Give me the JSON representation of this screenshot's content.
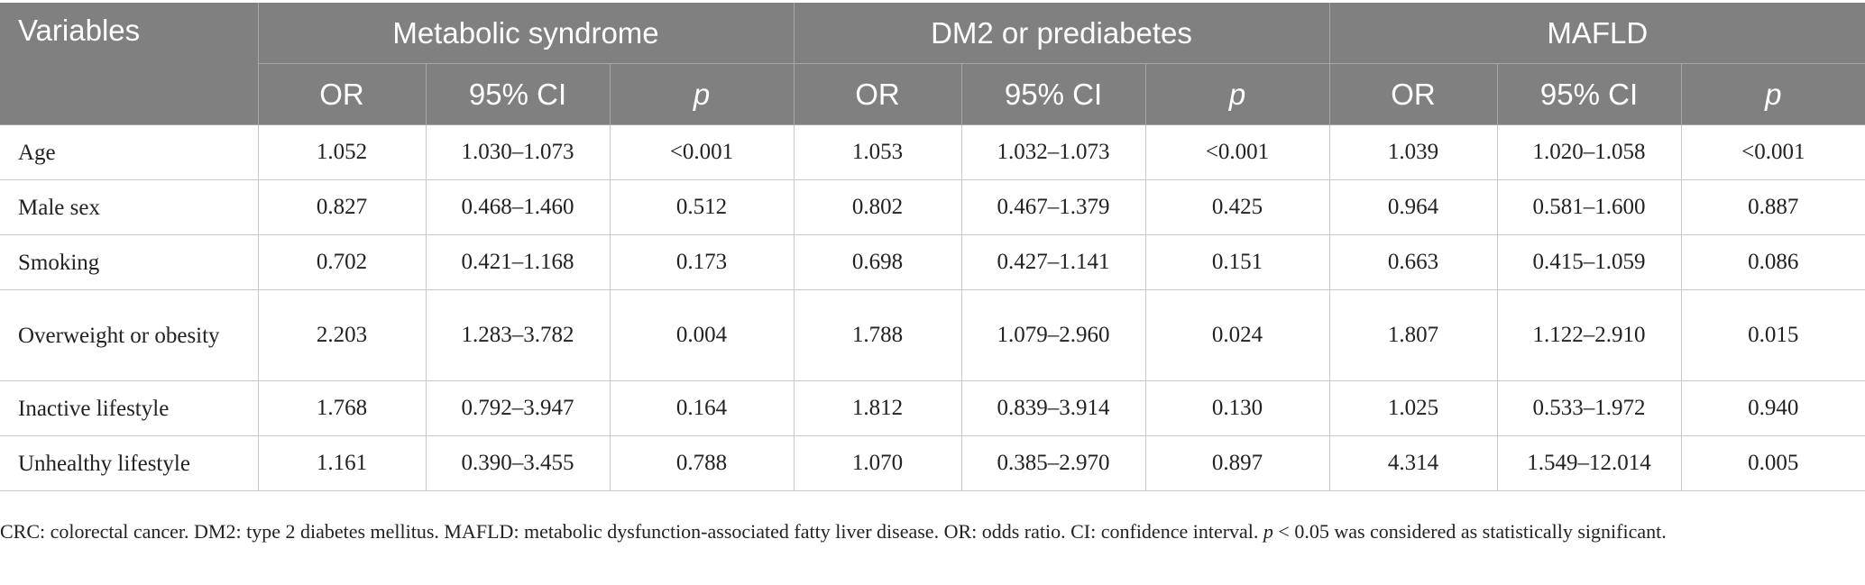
{
  "header": {
    "variables_label": "Variables",
    "groups": [
      "Metabolic syndrome",
      "DM2 or prediabetes",
      "MAFLD"
    ],
    "subcolumns": [
      "OR",
      "95% CI",
      "p"
    ]
  },
  "rows": [
    {
      "variable": "Age",
      "values": [
        "1.052",
        "1.030–1.073",
        "<0.001",
        "1.053",
        "1.032–1.073",
        "<0.001",
        "1.039",
        "1.020–1.058",
        "<0.001"
      ]
    },
    {
      "variable": "Male sex",
      "values": [
        "0.827",
        "0.468–1.460",
        "0.512",
        "0.802",
        "0.467–1.379",
        "0.425",
        "0.964",
        "0.581–1.600",
        "0.887"
      ]
    },
    {
      "variable": "Smoking",
      "values": [
        "0.702",
        "0.421–1.168",
        "0.173",
        "0.698",
        "0.427–1.141",
        "0.151",
        "0.663",
        "0.415–1.059",
        "0.086"
      ]
    },
    {
      "variable": "Overweight or obesity",
      "values": [
        "2.203",
        "1.283–3.782",
        "0.004",
        "1.788",
        "1.079–2.960",
        "0.024",
        "1.807",
        "1.122–2.910",
        "0.015"
      ]
    },
    {
      "variable": "Inactive lifestyle",
      "values": [
        "1.768",
        "0.792–3.947",
        "0.164",
        "1.812",
        "0.839–3.914",
        "0.130",
        "1.025",
        "0.533–1.972",
        "0.940"
      ]
    },
    {
      "variable": "Unhealthy lifestyle",
      "values": [
        "1.161",
        "0.390–3.455",
        "0.788",
        "1.070",
        "0.385–2.970",
        "0.897",
        "4.314",
        "1.549–12.014",
        "0.005"
      ]
    }
  ],
  "footnote": {
    "text_before_p": "CRC: colorectal cancer. DM2: type 2 diabetes mellitus. MAFLD: metabolic dysfunction-associated fatty liver disease. OR: odds ratio. CI: confidence interval. ",
    "p_symbol": "p",
    "text_after_p": " < 0.05 was considered as statistically significant."
  }
}
